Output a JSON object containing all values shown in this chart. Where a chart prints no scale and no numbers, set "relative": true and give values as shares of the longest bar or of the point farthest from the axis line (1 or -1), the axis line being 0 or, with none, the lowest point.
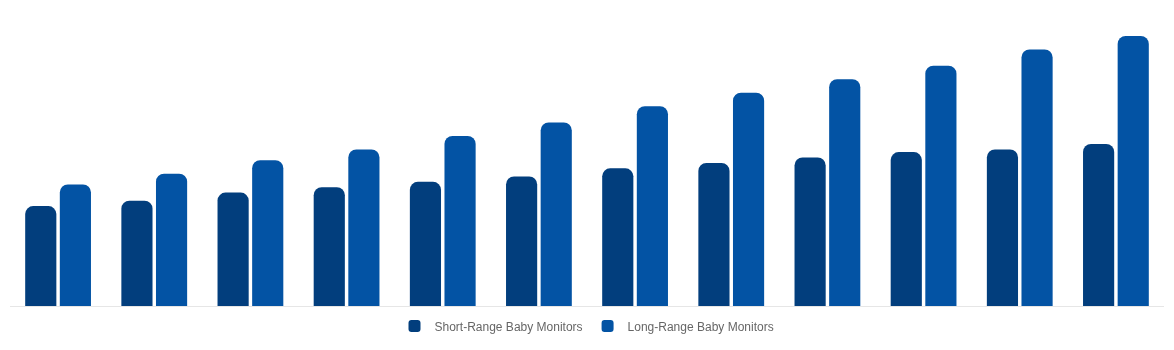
{
  "chart_data": {
    "type": "bar",
    "relative": true,
    "categories": [
      null,
      null,
      null,
      null,
      null,
      null,
      null,
      null,
      null,
      null,
      null,
      null
    ],
    "series": [
      {
        "name": "Short-Range Baby Monitors",
        "color": "#023e7d",
        "values": [
          0.37,
          0.39,
          0.42,
          0.44,
          0.46,
          0.48,
          0.51,
          0.53,
          0.55,
          0.57,
          0.58,
          0.6
        ]
      },
      {
        "name": "Long-Range Baby Monitors",
        "color": "#0353a4",
        "values": [
          0.45,
          0.49,
          0.54,
          0.58,
          0.63,
          0.68,
          0.74,
          0.79,
          0.84,
          0.89,
          0.95,
          1
        ]
      }
    ],
    "legend": "bottom"
  }
}
